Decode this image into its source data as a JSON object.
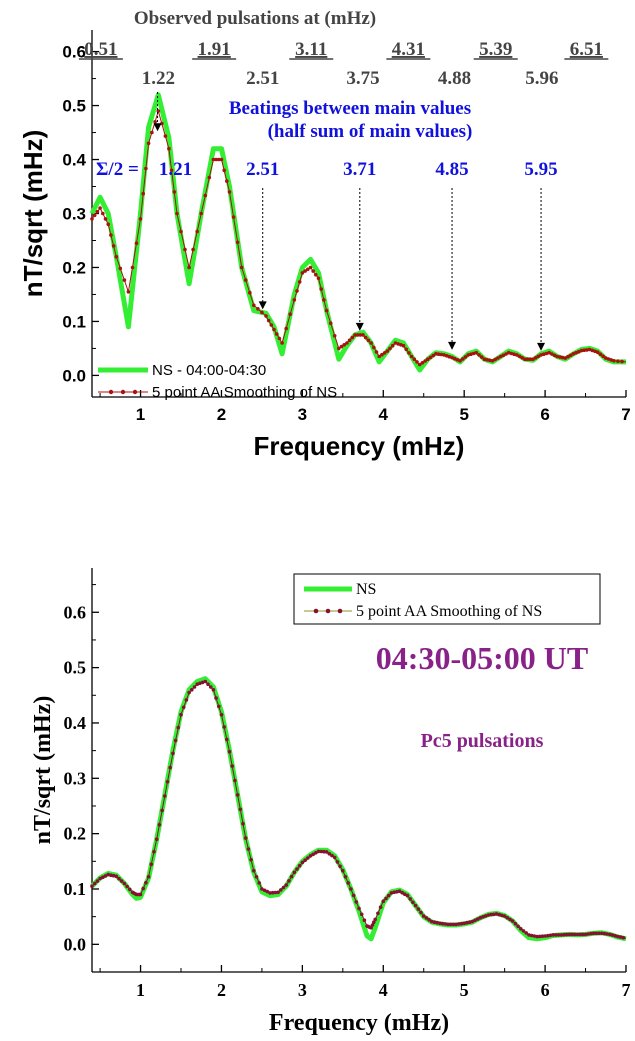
{
  "chart_data": [
    {
      "type": "line",
      "title": "",
      "xlabel": "Frequency (mHz)",
      "ylabel": "nT/sqrt (mHz)",
      "xlim": [
        0.4,
        7.0
      ],
      "ylim": [
        -0.04,
        0.64
      ],
      "xticks": [
        "1",
        "2",
        "3",
        "4",
        "5",
        "6",
        "7"
      ],
      "yticks": [
        "0.0",
        "0.1",
        "0.2",
        "0.3",
        "0.4",
        "0.5",
        "0.6"
      ],
      "legend_position": "bottom-left",
      "colors": {
        "series1": "#33ee33",
        "series2": "#aa1111",
        "annotation": "#1111dd",
        "header": "#444444"
      },
      "series": [
        {
          "name": "NS - 04:00-04:30",
          "x": [
            0.4,
            0.5,
            0.6,
            0.7,
            0.85,
            1.0,
            1.1,
            1.22,
            1.35,
            1.45,
            1.6,
            1.75,
            1.9,
            2.0,
            2.1,
            2.25,
            2.4,
            2.55,
            2.65,
            2.75,
            2.9,
            3.0,
            3.1,
            3.2,
            3.3,
            3.45,
            3.55,
            3.65,
            3.75,
            3.85,
            3.95,
            4.05,
            4.15,
            4.25,
            4.35,
            4.45,
            4.55,
            4.65,
            4.75,
            4.85,
            4.95,
            5.05,
            5.15,
            5.25,
            5.35,
            5.45,
            5.55,
            5.65,
            5.75,
            5.85,
            5.95,
            6.05,
            6.15,
            6.25,
            6.35,
            6.45,
            6.55,
            6.65,
            6.75,
            6.85,
            7.0
          ],
          "y": [
            0.3,
            0.33,
            0.3,
            0.22,
            0.09,
            0.3,
            0.46,
            0.52,
            0.44,
            0.3,
            0.17,
            0.3,
            0.42,
            0.42,
            0.35,
            0.2,
            0.12,
            0.115,
            0.09,
            0.04,
            0.15,
            0.2,
            0.215,
            0.19,
            0.12,
            0.03,
            0.055,
            0.075,
            0.08,
            0.06,
            0.025,
            0.045,
            0.065,
            0.06,
            0.035,
            0.01,
            0.03,
            0.042,
            0.04,
            0.035,
            0.025,
            0.04,
            0.045,
            0.03,
            0.025,
            0.035,
            0.045,
            0.04,
            0.03,
            0.028,
            0.04,
            0.045,
            0.035,
            0.03,
            0.04,
            0.048,
            0.05,
            0.045,
            0.03,
            0.025,
            0.025
          ]
        },
        {
          "name": "5 point AA Smoothing of NS",
          "x": [
            0.4,
            0.5,
            0.6,
            0.7,
            0.85,
            1.0,
            1.1,
            1.22,
            1.35,
            1.45,
            1.6,
            1.75,
            1.9,
            2.0,
            2.1,
            2.25,
            2.4,
            2.55,
            2.65,
            2.75,
            2.9,
            3.0,
            3.1,
            3.2,
            3.3,
            3.45,
            3.55,
            3.65,
            3.75,
            3.85,
            3.95,
            4.05,
            4.15,
            4.25,
            4.35,
            4.45,
            4.55,
            4.65,
            4.75,
            4.85,
            4.95,
            5.05,
            5.15,
            5.25,
            5.35,
            5.45,
            5.55,
            5.65,
            5.75,
            5.85,
            5.95,
            6.05,
            6.15,
            6.25,
            6.35,
            6.45,
            6.55,
            6.65,
            6.75,
            6.85,
            7.0
          ],
          "y": [
            0.29,
            0.31,
            0.28,
            0.22,
            0.155,
            0.29,
            0.43,
            0.49,
            0.42,
            0.3,
            0.2,
            0.3,
            0.4,
            0.4,
            0.34,
            0.2,
            0.13,
            0.11,
            0.085,
            0.06,
            0.14,
            0.19,
            0.2,
            0.18,
            0.12,
            0.05,
            0.06,
            0.075,
            0.075,
            0.06,
            0.035,
            0.045,
            0.06,
            0.055,
            0.035,
            0.02,
            0.03,
            0.04,
            0.038,
            0.033,
            0.027,
            0.038,
            0.042,
            0.03,
            0.027,
            0.035,
            0.042,
            0.038,
            0.03,
            0.03,
            0.038,
            0.042,
            0.035,
            0.032,
            0.04,
            0.046,
            0.048,
            0.043,
            0.032,
            0.027,
            0.025
          ]
        }
      ],
      "annotations": {
        "header": "Observed pulsations at (mHz)",
        "observed_top": [
          {
            "x": 0.51,
            "label": "0.51"
          },
          {
            "x": 1.91,
            "label": "1.91"
          },
          {
            "x": 3.11,
            "label": "3.11"
          },
          {
            "x": 4.31,
            "label": "4.31"
          },
          {
            "x": 5.39,
            "label": "5.39"
          },
          {
            "x": 6.51,
            "label": "6.51"
          }
        ],
        "observed_bottom": [
          {
            "x": 1.22,
            "label": "1.22"
          },
          {
            "x": 2.51,
            "label": "2.51"
          },
          {
            "x": 3.75,
            "label": "3.75"
          },
          {
            "x": 4.88,
            "label": "4.88"
          },
          {
            "x": 5.96,
            "label": "5.96"
          }
        ],
        "beatings_title": "Beatings between main values",
        "beatings_subtitle": "(half sum of main values)",
        "sigma_prefix": "Σ/2 =",
        "beatings": [
          {
            "x": 1.21,
            "label": "1.21",
            "arrow_to": 0.445
          },
          {
            "x": 2.51,
            "label": "2.51",
            "arrow_to": 0.115
          },
          {
            "x": 3.71,
            "label": "3.71",
            "arrow_to": 0.075
          },
          {
            "x": 4.85,
            "label": "4.85",
            "arrow_to": 0.04
          },
          {
            "x": 5.95,
            "label": "5.95",
            "arrow_to": 0.038
          }
        ]
      }
    },
    {
      "type": "line",
      "title": "04:30-05:00 UT",
      "subtitle": "Pc5 pulsations",
      "xlabel": "Frequency (mHz)",
      "ylabel": "nT/sqrt (mHz)",
      "xlim": [
        0.4,
        7.0
      ],
      "ylim": [
        -0.05,
        0.68
      ],
      "xticks": [
        "1",
        "2",
        "3",
        "4",
        "5",
        "6",
        "7"
      ],
      "yticks": [
        "0.0",
        "0.1",
        "0.2",
        "0.3",
        "0.4",
        "0.5",
        "0.6"
      ],
      "legend_position": "top-right",
      "colors": {
        "series1": "#33ee33",
        "series2": "#881133",
        "title": "#882288"
      },
      "series": [
        {
          "name": "NS",
          "x": [
            0.4,
            0.5,
            0.6,
            0.7,
            0.8,
            0.9,
            0.95,
            1.0,
            1.1,
            1.2,
            1.3,
            1.4,
            1.5,
            1.6,
            1.7,
            1.8,
            1.9,
            2.0,
            2.1,
            2.2,
            2.3,
            2.4,
            2.5,
            2.6,
            2.7,
            2.8,
            2.9,
            3.0,
            3.1,
            3.2,
            3.3,
            3.4,
            3.5,
            3.6,
            3.7,
            3.8,
            3.85,
            3.9,
            4.0,
            4.1,
            4.2,
            4.3,
            4.4,
            4.5,
            4.6,
            4.7,
            4.8,
            4.9,
            5.0,
            5.1,
            5.2,
            5.3,
            5.4,
            5.5,
            5.6,
            5.7,
            5.8,
            5.9,
            6.0,
            6.1,
            6.2,
            6.3,
            6.4,
            6.5,
            6.6,
            6.7,
            6.8,
            6.9,
            7.0
          ],
          "y": [
            0.105,
            0.12,
            0.128,
            0.125,
            0.11,
            0.09,
            0.083,
            0.085,
            0.12,
            0.19,
            0.27,
            0.35,
            0.42,
            0.46,
            0.475,
            0.48,
            0.465,
            0.42,
            0.35,
            0.27,
            0.19,
            0.13,
            0.095,
            0.088,
            0.09,
            0.105,
            0.13,
            0.15,
            0.162,
            0.17,
            0.17,
            0.16,
            0.135,
            0.1,
            0.06,
            0.015,
            0.01,
            0.03,
            0.075,
            0.095,
            0.098,
            0.09,
            0.07,
            0.05,
            0.04,
            0.037,
            0.035,
            0.035,
            0.037,
            0.04,
            0.048,
            0.054,
            0.056,
            0.052,
            0.042,
            0.025,
            0.012,
            0.01,
            0.012,
            0.016,
            0.017,
            0.018,
            0.017,
            0.018,
            0.02,
            0.021,
            0.018,
            0.013,
            0.01
          ]
        },
        {
          "name": "5 point AA Smoothing of NS",
          "x": [
            0.4,
            0.5,
            0.6,
            0.7,
            0.8,
            0.9,
            0.95,
            1.0,
            1.1,
            1.2,
            1.3,
            1.4,
            1.5,
            1.6,
            1.7,
            1.8,
            1.9,
            2.0,
            2.1,
            2.2,
            2.3,
            2.4,
            2.5,
            2.6,
            2.7,
            2.8,
            2.9,
            3.0,
            3.1,
            3.2,
            3.3,
            3.4,
            3.5,
            3.6,
            3.7,
            3.8,
            3.85,
            3.9,
            4.0,
            4.1,
            4.2,
            4.3,
            4.4,
            4.5,
            4.6,
            4.7,
            4.8,
            4.9,
            5.0,
            5.1,
            5.2,
            5.3,
            5.4,
            5.5,
            5.6,
            5.7,
            5.8,
            5.9,
            6.0,
            6.1,
            6.2,
            6.3,
            6.4,
            6.5,
            6.6,
            6.7,
            6.8,
            6.9,
            7.0
          ],
          "y": [
            0.105,
            0.119,
            0.126,
            0.123,
            0.11,
            0.094,
            0.09,
            0.09,
            0.122,
            0.19,
            0.268,
            0.345,
            0.415,
            0.455,
            0.47,
            0.475,
            0.46,
            0.415,
            0.348,
            0.27,
            0.192,
            0.133,
            0.1,
            0.093,
            0.094,
            0.107,
            0.13,
            0.148,
            0.16,
            0.168,
            0.167,
            0.157,
            0.133,
            0.1,
            0.065,
            0.033,
            0.03,
            0.045,
            0.078,
            0.093,
            0.096,
            0.088,
            0.07,
            0.051,
            0.041,
            0.038,
            0.036,
            0.036,
            0.038,
            0.041,
            0.048,
            0.053,
            0.055,
            0.051,
            0.042,
            0.028,
            0.017,
            0.014,
            0.015,
            0.017,
            0.017,
            0.018,
            0.018,
            0.018,
            0.02,
            0.02,
            0.018,
            0.014,
            0.011
          ]
        }
      ]
    }
  ]
}
